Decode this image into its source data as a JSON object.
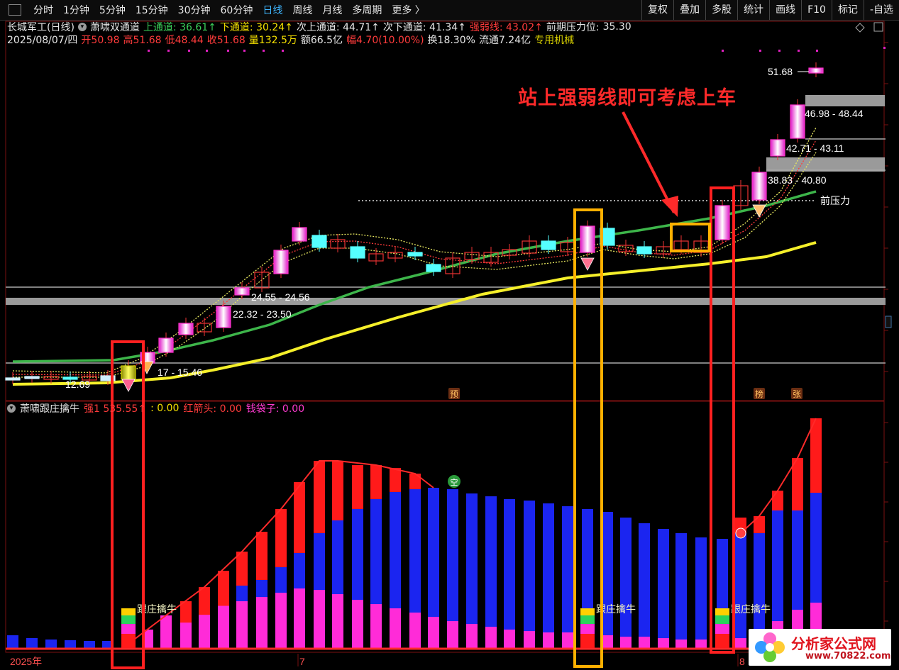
{
  "toolbar": {
    "periods": [
      "分时",
      "1分钟",
      "5分钟",
      "15分钟",
      "30分钟",
      "60分钟",
      "日线",
      "周线",
      "月线",
      "多周期",
      "更多 〉"
    ],
    "active_period": "日线",
    "tools": [
      "复权",
      "叠加",
      "多股",
      "统计",
      "画线",
      "F10",
      "标记",
      "-自选"
    ]
  },
  "header": {
    "stock": "长城军工(日线)",
    "indicator": "萧啸双通道",
    "upper_channel": "上通道: 36.61↑",
    "lower_channel": "下通道: 30.24↑",
    "second_upper": "次上通道: 44.71↑",
    "second_lower": "次下通道: 41.34↑",
    "strength_line": "强弱线: 43.02↑",
    "prior_pressure_label": "前期压力位:",
    "prior_pressure_value": "35.30"
  },
  "quote": {
    "date": "2025/08/07/四",
    "open": "开50.98",
    "high": "高51.68",
    "low": "低48.44",
    "close": "收51.68",
    "volume": "量132.5万",
    "amount": "额66.5亿",
    "change": "幅4.70(10.00%)",
    "turnover": "换18.30%",
    "float_cap": "流通7.24亿",
    "tag": "专用机械"
  },
  "price_labels": {
    "high": "51.68",
    "zone1": "46.98 - 48.44",
    "zone2": "42.71 - 43.11",
    "zone3": "38.83 - 40.80",
    "zone4": "24.55 - 24.56",
    "zone5": "22.32 - 23.50",
    "zone6": "17 - 15.46",
    "zone7": "12.69",
    "pressure": "前压力"
  },
  "annotation": "站上强弱线即可考虑上车",
  "markers": {
    "pre": "预",
    "bang": "榜",
    "zhang": "张",
    "kong": "空"
  },
  "indicator2": {
    "name": "萧啸跟庄擒牛",
    "strength": "强1 535.55↑",
    "blank": ": 0.00",
    "red_arrow": "红箭头: 0.00",
    "money_bag": "钱袋子: 0.00",
    "signal_label": "跟庄擒牛"
  },
  "xaxis": {
    "year": "2025年",
    "m7": "7",
    "m8": "8"
  },
  "watermark": {
    "line1": "分析家公式网",
    "line2": "www.70822.com"
  },
  "colors": {
    "green_line": "#3db54a",
    "yellow_line": "#f5ef2a",
    "red_box": "#ff2020",
    "orange_box": "#ffb000",
    "blue_bar": "#1b25f0",
    "red_bar": "#ff1a1a",
    "magenta_bar": "#ff2bd8"
  }
}
